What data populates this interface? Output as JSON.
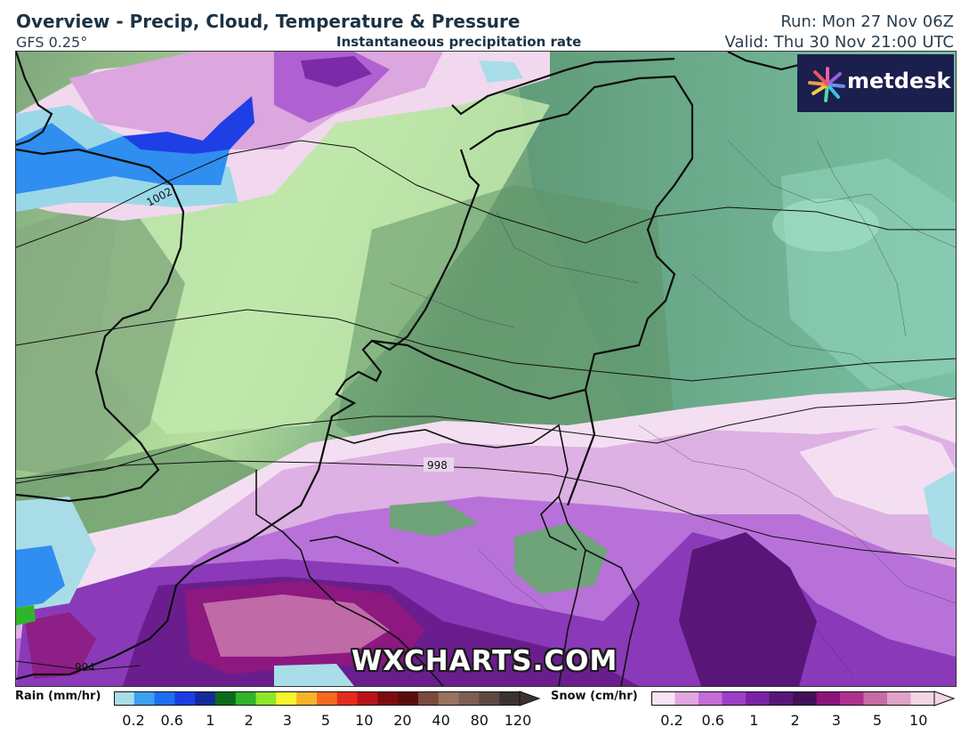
{
  "header": {
    "title": "Overview - Precip, Cloud, Temperature & Pressure",
    "model": "GFS 0.25°",
    "product": "Instantaneous precipitation rate",
    "run": "Run: Mon 27 Nov 06Z",
    "valid": "Valid: Thu 30 Nov 21:00 UTC"
  },
  "brand": {
    "logo_text": "metdesk",
    "watermark": "WXCHARTS.COM"
  },
  "isobars": [
    {
      "label": "1002"
    },
    {
      "label": "998"
    },
    {
      "label": "994"
    }
  ],
  "legend": {
    "rain": {
      "label": "Rain (mm/hr)",
      "ticks": [
        "0.2",
        "0.6",
        "1",
        "2",
        "3",
        "5",
        "10",
        "20",
        "40",
        "80",
        "120"
      ],
      "colors": [
        "#a8dde8",
        "#3aa0f0",
        "#1f6ef2",
        "#1a3de6",
        "#142a9c",
        "#0b6b1a",
        "#2fb52a",
        "#8ee62b",
        "#f5f52c",
        "#f8b22a",
        "#f56a1e",
        "#e62b1e",
        "#b8141a",
        "#7d0c10",
        "#5a0d0d",
        "#7a4a3c",
        "#9a7260",
        "#7d5f52",
        "#5e4a42",
        "#3c3232"
      ]
    },
    "snow": {
      "label": "Snow (cm/hr)",
      "ticks": [
        "0.2",
        "0.6",
        "1",
        "2",
        "3",
        "5",
        "10"
      ],
      "colors": [
        "#f7e3f3",
        "#e2a6e2",
        "#c46cd8",
        "#9b3fc7",
        "#7a22a6",
        "#591679",
        "#430f59",
        "#8b137a",
        "#b0308f",
        "#c76aa6",
        "#dfa2c8",
        "#f3d5e6"
      ]
    }
  }
}
